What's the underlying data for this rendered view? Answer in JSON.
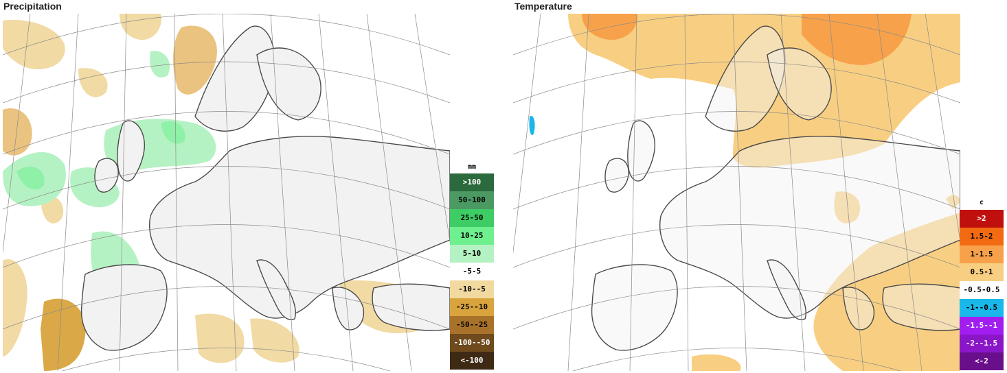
{
  "panels": [
    {
      "title": "Precipitation",
      "legend_unit": "mm",
      "legend": [
        {
          "label": ">100",
          "color": "#2a6a3d"
        },
        {
          "label": "50-100",
          "color": "#4c9a63"
        },
        {
          "label": "25-50",
          "color": "#3ecc64"
        },
        {
          "label": "10-25",
          "color": "#6ff08f"
        },
        {
          "label": "5-10",
          "color": "#b5f2c3"
        },
        {
          "label": "-5-5",
          "color": "#ffffff"
        },
        {
          "label": "-10--5",
          "color": "#f1d9a0"
        },
        {
          "label": "-25--10",
          "color": "#d9a43e"
        },
        {
          "label": "-50--25",
          "color": "#a9722a"
        },
        {
          "label": "-100--50",
          "color": "#6e4a1c"
        },
        {
          "label": "<-100",
          "color": "#3e2a14"
        }
      ]
    },
    {
      "title": "Temperature",
      "legend_unit": "c",
      "legend": [
        {
          "label": ">2",
          "color": "#c0100e"
        },
        {
          "label": "1.5-2",
          "color": "#f26b13"
        },
        {
          "label": "1-1.5",
          "color": "#f7a24a"
        },
        {
          "label": "0.5-1",
          "color": "#f8cf82"
        },
        {
          "label": "-0.5-0.5",
          "color": "#ffffff"
        },
        {
          "label": "-1--0.5",
          "color": "#1ab7ea"
        },
        {
          "label": "-1.5--1",
          "color": "#a21ef0"
        },
        {
          "label": "-2--1.5",
          "color": "#8a16c8"
        },
        {
          "label": "<-2",
          "color": "#6a0f8c"
        }
      ]
    }
  ]
}
